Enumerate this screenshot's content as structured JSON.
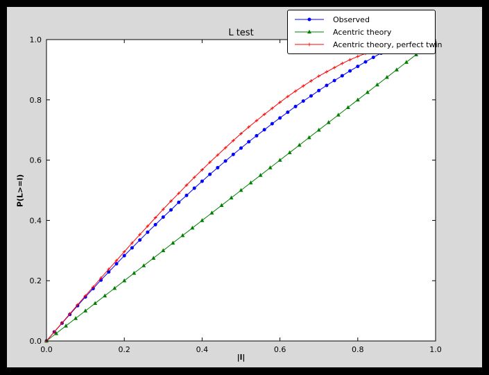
{
  "window": {
    "background_color": "#000000",
    "figure_background_color": "#d9d9d9",
    "plot_background_color": "#ffffff"
  },
  "chart_data": {
    "type": "line",
    "title": "L test",
    "xlabel": "|l|",
    "ylabel": "P(L>=l)",
    "xlim": [
      0,
      1
    ],
    "ylim": [
      0,
      1
    ],
    "grid": false,
    "legend_position": "upper right, partly above axes",
    "xticks": {
      "values": [
        0,
        0.2,
        0.4,
        0.6,
        0.8,
        1.0
      ],
      "labels": [
        "0.0",
        "0.2",
        "0.4",
        "0.6",
        "0.8",
        "1.0"
      ]
    },
    "yticks": {
      "values": [
        0,
        0.2,
        0.4,
        0.6,
        0.8,
        1.0
      ],
      "labels": [
        "0.0",
        "0.2",
        "0.4",
        "0.6",
        "0.8",
        "1.0"
      ]
    },
    "series": [
      {
        "name": "Observed",
        "color": "#0000ff",
        "marker": "circle",
        "x": [
          0,
          0.02,
          0.04,
          0.06,
          0.08,
          0.1,
          0.12,
          0.14,
          0.16,
          0.18,
          0.2,
          0.22,
          0.24,
          0.26,
          0.28,
          0.3,
          0.32,
          0.34,
          0.36,
          0.38,
          0.4,
          0.42,
          0.44,
          0.46,
          0.48,
          0.5,
          0.52,
          0.54,
          0.56,
          0.58,
          0.6,
          0.62,
          0.64,
          0.66,
          0.68,
          0.7,
          0.72,
          0.74,
          0.76,
          0.78,
          0.8,
          0.82,
          0.84,
          0.86
        ],
        "y": [
          0,
          0.03,
          0.059,
          0.088,
          0.117,
          0.146,
          0.174,
          0.202,
          0.229,
          0.256,
          0.283,
          0.309,
          0.335,
          0.361,
          0.386,
          0.411,
          0.435,
          0.46,
          0.483,
          0.507,
          0.53,
          0.553,
          0.575,
          0.597,
          0.619,
          0.64,
          0.661,
          0.681,
          0.701,
          0.721,
          0.74,
          0.759,
          0.778,
          0.796,
          0.813,
          0.831,
          0.848,
          0.864,
          0.88,
          0.896,
          0.911,
          0.926,
          0.941,
          0.955
        ]
      },
      {
        "name": "Acentric theory",
        "color": "#007f00",
        "marker": "triangle",
        "x": [
          0,
          0.025,
          0.05,
          0.075,
          0.1,
          0.125,
          0.15,
          0.175,
          0.2,
          0.225,
          0.25,
          0.275,
          0.3,
          0.325,
          0.35,
          0.375,
          0.4,
          0.425,
          0.45,
          0.475,
          0.5,
          0.525,
          0.55,
          0.575,
          0.6,
          0.625,
          0.65,
          0.675,
          0.7,
          0.725,
          0.75,
          0.775,
          0.8,
          0.825,
          0.85,
          0.875,
          0.9,
          0.925,
          0.95,
          0.975
        ],
        "y": [
          0,
          0.025,
          0.05,
          0.075,
          0.1,
          0.125,
          0.15,
          0.175,
          0.2,
          0.225,
          0.25,
          0.275,
          0.3,
          0.325,
          0.35,
          0.375,
          0.4,
          0.425,
          0.45,
          0.475,
          0.5,
          0.525,
          0.55,
          0.575,
          0.6,
          0.625,
          0.65,
          0.675,
          0.7,
          0.725,
          0.75,
          0.775,
          0.8,
          0.825,
          0.85,
          0.875,
          0.9,
          0.925,
          0.95,
          0.975
        ]
      },
      {
        "name": "Acentric theory, perfect twin",
        "color": "#ff0000",
        "marker": "plus",
        "x": [
          0,
          0.02,
          0.04,
          0.06,
          0.08,
          0.1,
          0.12,
          0.14,
          0.16,
          0.18,
          0.2,
          0.22,
          0.24,
          0.26,
          0.28,
          0.3,
          0.32,
          0.34,
          0.36,
          0.38,
          0.4,
          0.42,
          0.44,
          0.46,
          0.48,
          0.5,
          0.52,
          0.54,
          0.56,
          0.58,
          0.6,
          0.62,
          0.64,
          0.66,
          0.68,
          0.7,
          0.72,
          0.74,
          0.76,
          0.78,
          0.8,
          0.82,
          0.84,
          0.86
        ],
        "y": [
          0,
          0.03,
          0.06,
          0.09,
          0.12,
          0.15,
          0.179,
          0.209,
          0.238,
          0.267,
          0.296,
          0.325,
          0.353,
          0.381,
          0.409,
          0.437,
          0.464,
          0.49,
          0.517,
          0.543,
          0.568,
          0.593,
          0.617,
          0.641,
          0.665,
          0.688,
          0.71,
          0.731,
          0.752,
          0.772,
          0.792,
          0.811,
          0.829,
          0.846,
          0.863,
          0.879,
          0.893,
          0.907,
          0.921,
          0.933,
          0.944,
          0.954,
          0.964,
          0.972
        ]
      }
    ]
  }
}
